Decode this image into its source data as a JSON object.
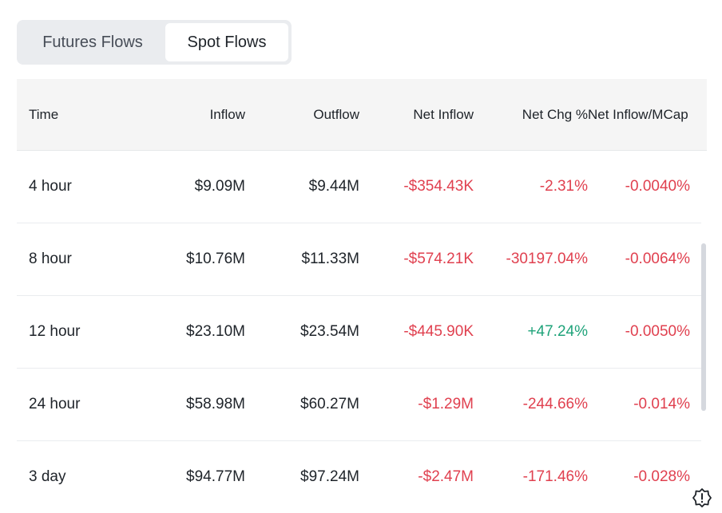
{
  "tabs": [
    {
      "label": "Futures Flows",
      "active": false
    },
    {
      "label": "Spot Flows",
      "active": true
    }
  ],
  "table": {
    "headers": [
      "Time",
      "Inflow",
      "Outflow",
      "Net Inflow",
      "Net Chg %",
      "Net Inflow/MCap"
    ],
    "rows": [
      {
        "time": "4 hour",
        "inflow": "$9.09M",
        "outflow": "$9.44M",
        "net_inflow": "-$354.43K",
        "net_chg": "-2.31%",
        "mcap": "-0.0040%"
      },
      {
        "time": "8 hour",
        "inflow": "$10.76M",
        "outflow": "$11.33M",
        "net_inflow": "-$574.21K",
        "net_chg": "-30197.04%",
        "mcap": "-0.0064%"
      },
      {
        "time": "12 hour",
        "inflow": "$23.10M",
        "outflow": "$23.54M",
        "net_inflow": "-$445.90K",
        "net_chg": "+47.24%",
        "mcap": "-0.0050%"
      },
      {
        "time": "24 hour",
        "inflow": "$58.98M",
        "outflow": "$60.27M",
        "net_inflow": "-$1.29M",
        "net_chg": "-244.66%",
        "mcap": "-0.014%"
      },
      {
        "time": "3 day",
        "inflow": "$94.77M",
        "outflow": "$97.24M",
        "net_inflow": "-$2.47M",
        "net_chg": "-171.46%",
        "mcap": "-0.028%"
      }
    ]
  },
  "colors": {
    "negative": "#e0404f",
    "positive": "#1fa37a",
    "header_bg": "#f5f5f5",
    "tab_bg": "#eaecef"
  },
  "icons": {
    "corner": "alert-badge-icon"
  }
}
